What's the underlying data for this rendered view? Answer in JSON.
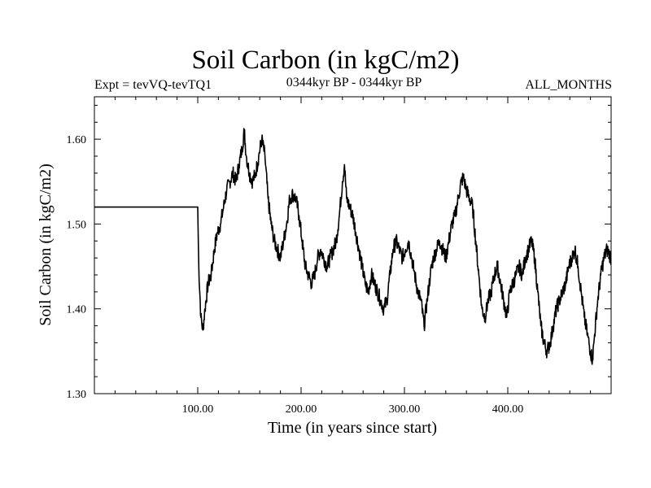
{
  "header": {
    "title": "Soil Carbon (in kgC/m2)",
    "experiment": "Expt = tevVQ-tevTQ1",
    "period": "0344kyr BP - 0344kyr BP",
    "months": "ALL_MONTHS"
  },
  "chart_data": {
    "type": "line",
    "title": "Soil Carbon (in kgC/m2)",
    "xlabel": "Time (in years since start)",
    "ylabel": "Soil Carbon (in kgC/m2)",
    "xlim": [
      0,
      500
    ],
    "ylim": [
      1.3,
      1.65
    ],
    "x_ticks": [
      100,
      200,
      300,
      400
    ],
    "x_tick_labels": [
      "100.00",
      "200.00",
      "300.00",
      "400.00"
    ],
    "y_ticks": [
      1.3,
      1.4,
      1.5,
      1.6
    ],
    "y_tick_labels": [
      "1.30",
      "1.40",
      "1.50",
      "1.60"
    ],
    "grid": false,
    "series": [
      {
        "color": "#000000",
        "points": [
          [
            0,
            1.52
          ],
          [
            100,
            1.52
          ],
          [
            100,
            1.52
          ],
          [
            101,
            1.45
          ],
          [
            103,
            1.39
          ],
          [
            105,
            1.375
          ],
          [
            107,
            1.4
          ],
          [
            110,
            1.43
          ],
          [
            113,
            1.44
          ],
          [
            116,
            1.47
          ],
          [
            119,
            1.49
          ],
          [
            122,
            1.5
          ],
          [
            125,
            1.52
          ],
          [
            128,
            1.54
          ],
          [
            131,
            1.55
          ],
          [
            134,
            1.56
          ],
          [
            137,
            1.55
          ],
          [
            140,
            1.57
          ],
          [
            143,
            1.59
          ],
          [
            145,
            1.61
          ],
          [
            147,
            1.58
          ],
          [
            150,
            1.56
          ],
          [
            153,
            1.55
          ],
          [
            156,
            1.56
          ],
          [
            159,
            1.58
          ],
          [
            162,
            1.6
          ],
          [
            165,
            1.58
          ],
          [
            168,
            1.53
          ],
          [
            171,
            1.5
          ],
          [
            174,
            1.48
          ],
          [
            177,
            1.47
          ],
          [
            180,
            1.46
          ],
          [
            183,
            1.48
          ],
          [
            186,
            1.5
          ],
          [
            189,
            1.53
          ],
          [
            192,
            1.535
          ],
          [
            195,
            1.53
          ],
          [
            198,
            1.51
          ],
          [
            201,
            1.48
          ],
          [
            204,
            1.45
          ],
          [
            207,
            1.44
          ],
          [
            210,
            1.43
          ],
          [
            213,
            1.44
          ],
          [
            216,
            1.46
          ],
          [
            219,
            1.47
          ],
          [
            222,
            1.46
          ],
          [
            225,
            1.45
          ],
          [
            228,
            1.46
          ],
          [
            231,
            1.47
          ],
          [
            234,
            1.48
          ],
          [
            237,
            1.51
          ],
          [
            240,
            1.55
          ],
          [
            242,
            1.57
          ],
          [
            244,
            1.53
          ],
          [
            247,
            1.52
          ],
          [
            250,
            1.51
          ],
          [
            253,
            1.49
          ],
          [
            256,
            1.47
          ],
          [
            259,
            1.45
          ],
          [
            262,
            1.43
          ],
          [
            265,
            1.42
          ],
          [
            268,
            1.44
          ],
          [
            271,
            1.43
          ],
          [
            274,
            1.42
          ],
          [
            277,
            1.41
          ],
          [
            280,
            1.4
          ],
          [
            283,
            1.41
          ],
          [
            286,
            1.44
          ],
          [
            289,
            1.47
          ],
          [
            292,
            1.48
          ],
          [
            295,
            1.47
          ],
          [
            298,
            1.46
          ],
          [
            301,
            1.47
          ],
          [
            304,
            1.48
          ],
          [
            307,
            1.46
          ],
          [
            310,
            1.44
          ],
          [
            313,
            1.42
          ],
          [
            316,
            1.41
          ],
          [
            319,
            1.38
          ],
          [
            322,
            1.41
          ],
          [
            325,
            1.44
          ],
          [
            328,
            1.46
          ],
          [
            331,
            1.47
          ],
          [
            334,
            1.48
          ],
          [
            337,
            1.47
          ],
          [
            340,
            1.46
          ],
          [
            343,
            1.48
          ],
          [
            346,
            1.5
          ],
          [
            349,
            1.51
          ],
          [
            352,
            1.53
          ],
          [
            355,
            1.55
          ],
          [
            357,
            1.555
          ],
          [
            360,
            1.54
          ],
          [
            363,
            1.53
          ],
          [
            366,
            1.52
          ],
          [
            369,
            1.48
          ],
          [
            372,
            1.44
          ],
          [
            375,
            1.4
          ],
          [
            378,
            1.39
          ],
          [
            381,
            1.41
          ],
          [
            384,
            1.42
          ],
          [
            387,
            1.44
          ],
          [
            390,
            1.45
          ],
          [
            393,
            1.43
          ],
          [
            396,
            1.41
          ],
          [
            399,
            1.39
          ],
          [
            402,
            1.42
          ],
          [
            405,
            1.43
          ],
          [
            408,
            1.44
          ],
          [
            411,
            1.45
          ],
          [
            414,
            1.44
          ],
          [
            417,
            1.46
          ],
          [
            420,
            1.47
          ],
          [
            423,
            1.48
          ],
          [
            426,
            1.46
          ],
          [
            429,
            1.42
          ],
          [
            432,
            1.38
          ],
          [
            435,
            1.36
          ],
          [
            438,
            1.35
          ],
          [
            441,
            1.36
          ],
          [
            444,
            1.38
          ],
          [
            447,
            1.4
          ],
          [
            450,
            1.41
          ],
          [
            453,
            1.42
          ],
          [
            456,
            1.43
          ],
          [
            459,
            1.45
          ],
          [
            462,
            1.46
          ],
          [
            465,
            1.47
          ],
          [
            468,
            1.45
          ],
          [
            471,
            1.42
          ],
          [
            474,
            1.39
          ],
          [
            477,
            1.37
          ],
          [
            480,
            1.35
          ],
          [
            482,
            1.34
          ],
          [
            484,
            1.37
          ],
          [
            487,
            1.41
          ],
          [
            490,
            1.44
          ],
          [
            493,
            1.46
          ],
          [
            496,
            1.47
          ],
          [
            500,
            1.46
          ]
        ]
      }
    ]
  }
}
